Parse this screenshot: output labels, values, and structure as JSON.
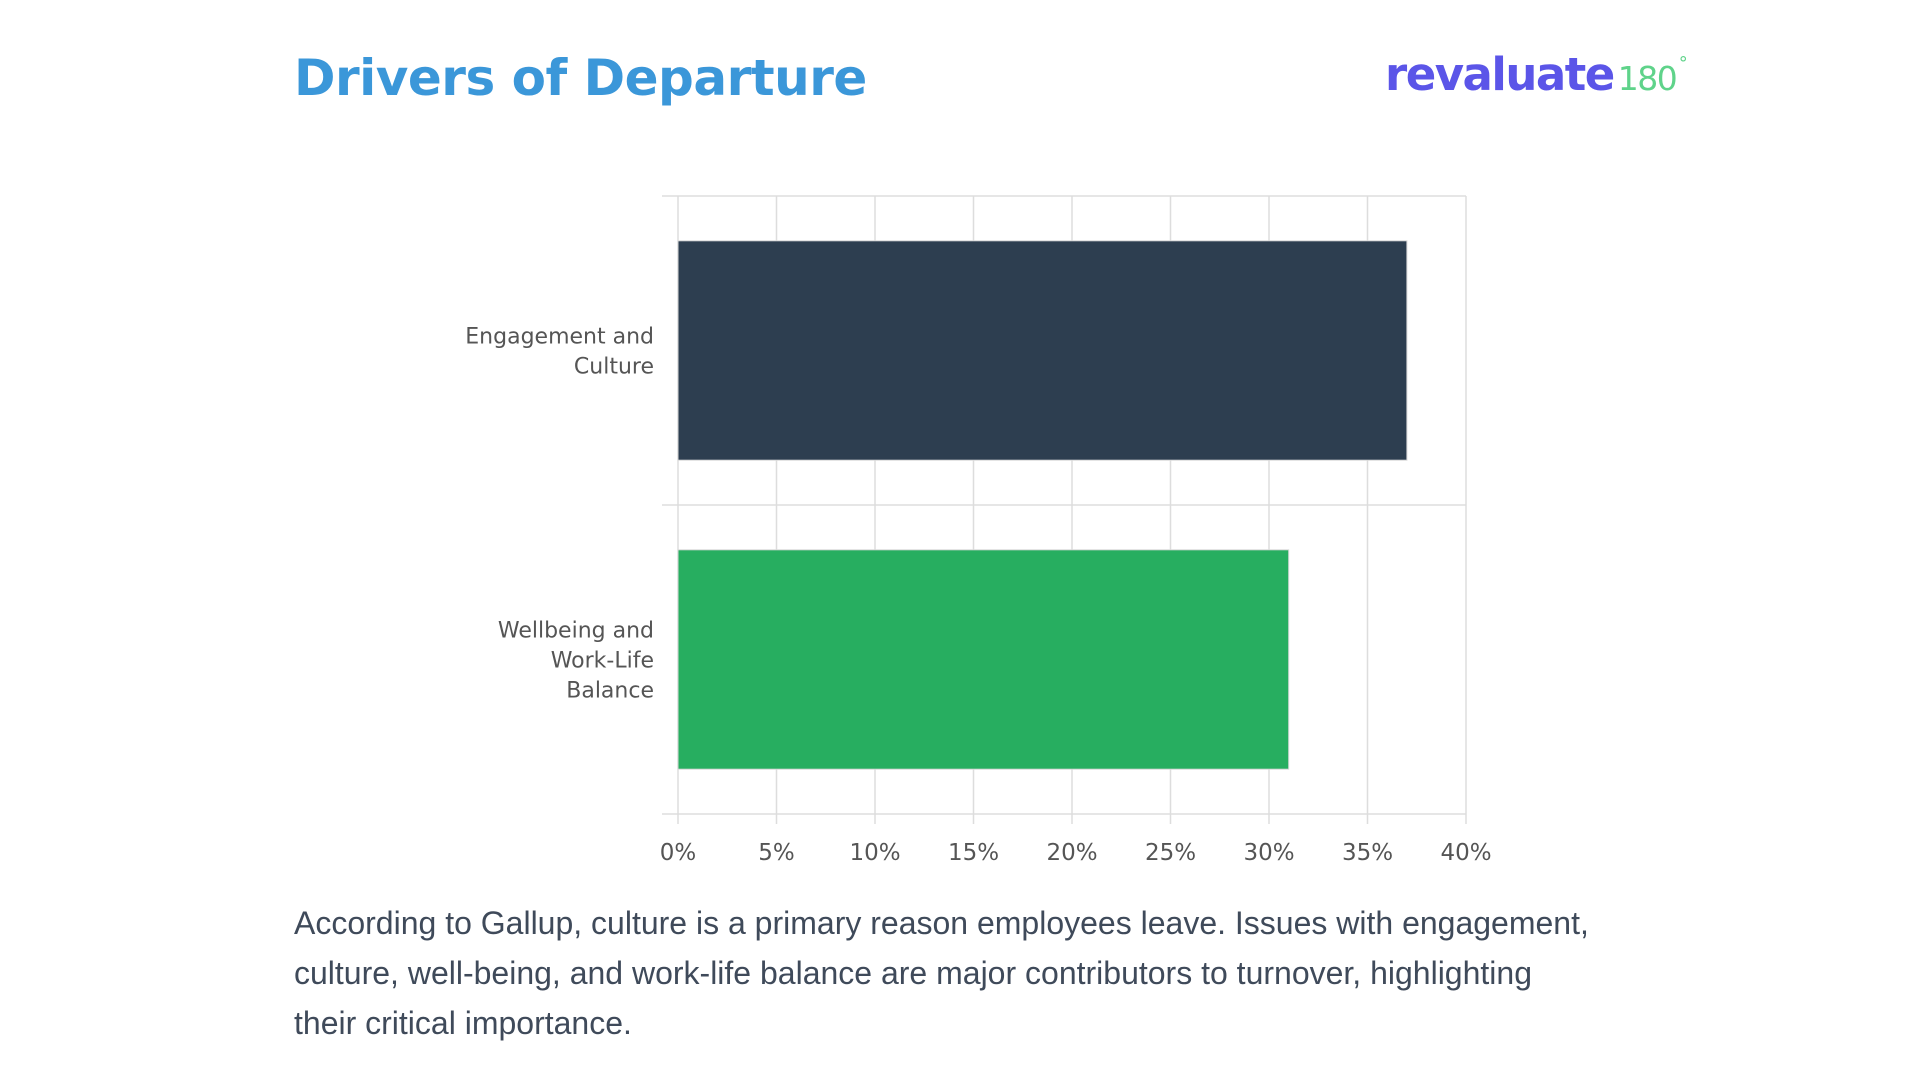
{
  "header": {
    "title": "Drivers of Departure"
  },
  "brand": {
    "word": "revaluate",
    "number": "180",
    "mark": "°"
  },
  "caption": "According to Gallup, culture is a primary reason employees leave. Issues with engagement, culture, well-being, and work-life balance are major contributors to turnover, highlighting their critical importance.",
  "colors": {
    "title": "#3b97d9",
    "brand_word": "#5b55e8",
    "brand_number": "#5fd38a",
    "caption": "#3f4a5a",
    "grid": "#dddddd",
    "axis_text": "#555555"
  },
  "chart_data": {
    "type": "bar",
    "orientation": "horizontal",
    "categories": [
      [
        "Engagement and",
        "Culture"
      ],
      [
        "Wellbeing and",
        "Work-Life",
        "Balance"
      ]
    ],
    "values": [
      37,
      31
    ],
    "bar_colors": [
      "#2d3e50",
      "#27ae60"
    ],
    "xlim": [
      0,
      40
    ],
    "xtick_values": [
      0,
      5,
      10,
      15,
      20,
      25,
      30,
      35,
      40
    ],
    "xtick_labels": [
      "0%",
      "5%",
      "10%",
      "15%",
      "20%",
      "25%",
      "30%",
      "35%",
      "40%"
    ],
    "grid": true,
    "legend": false
  }
}
